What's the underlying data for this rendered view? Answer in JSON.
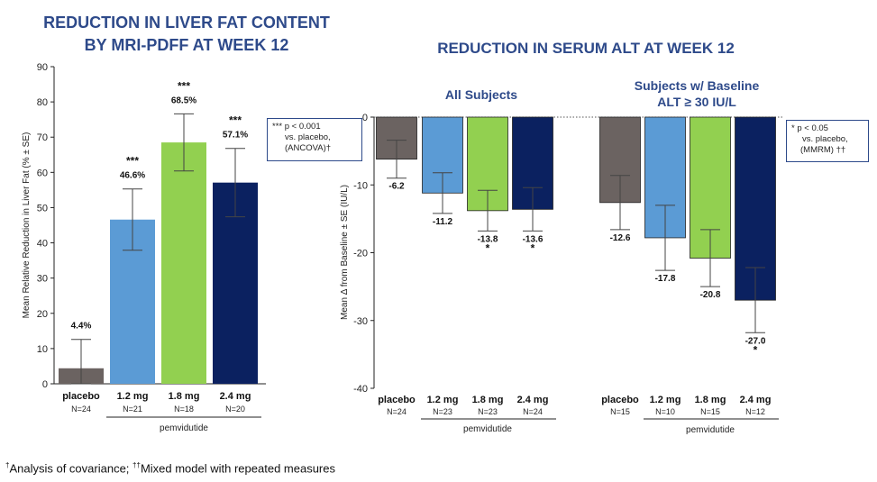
{
  "chart_data": [
    {
      "type": "bar",
      "title": [
        "REDUCTION IN LIVER FAT CONTENT",
        "BY MRI-PDFF AT WEEK 12"
      ],
      "ylabel": "Mean Relative Reduction in Liver Fat (% ± SE)",
      "ylim": [
        0,
        90
      ],
      "yticks": [
        0,
        10,
        20,
        30,
        40,
        50,
        60,
        70,
        80,
        90
      ],
      "categories": [
        "placebo",
        "1.2 mg",
        "1.8 mg",
        "2.4 mg"
      ],
      "n_labels": [
        "N=24",
        "N=21",
        "N=18",
        "N=20"
      ],
      "values": [
        4.4,
        46.6,
        68.5,
        57.1
      ],
      "errors": [
        8.2,
        8.7,
        8.1,
        9.7
      ],
      "value_labels": [
        "4.4%",
        "46.6%",
        "68.5%",
        "57.1%"
      ],
      "significance": [
        "",
        "***",
        "***",
        "***"
      ],
      "group_label": "pemvidutide",
      "legend": [
        "*** p  < 0.001",
        "vs. placebo,",
        "(ANCOVA)†"
      ],
      "colors": [
        "#6b6361",
        "#5b9bd5",
        "#92d050",
        "#0b2160"
      ]
    },
    {
      "type": "bar",
      "title": "REDUCTION IN SERUM ALT AT WEEK 12",
      "ylabel": "Mean Δ from Baseline ± SE (IU/L)",
      "ylim": [
        -40,
        0
      ],
      "yticks": [
        0,
        -10,
        -20,
        -30,
        -40
      ],
      "groups": [
        {
          "name": "All Subjects",
          "categories": [
            "placebo",
            "1.2 mg",
            "1.8 mg",
            "2.4 mg"
          ],
          "n_labels": [
            "N=24",
            "N=23",
            "N=23",
            "N=24"
          ],
          "values": [
            -6.2,
            -11.2,
            -13.8,
            -13.6
          ],
          "errors": [
            2.8,
            3.0,
            3.0,
            3.2
          ],
          "value_labels": [
            "-6.2",
            "-11.2",
            "-13.8",
            "-13.6"
          ],
          "significance": [
            "",
            "",
            "*",
            "*"
          ]
        },
        {
          "name": "Subjects w/ Baseline ALT ≥ 30 IU/L",
          "name_lines": [
            "Subjects w/ Baseline",
            "ALT ≥ 30 IU/L"
          ],
          "categories": [
            "placebo",
            "1.2 mg",
            "1.8 mg",
            "2.4 mg"
          ],
          "n_labels": [
            "N=15",
            "N=10",
            "N=15",
            "N=12"
          ],
          "values": [
            -12.6,
            -17.8,
            -20.8,
            -27.0
          ],
          "errors": [
            4.0,
            4.8,
            4.2,
            4.8
          ],
          "value_labels": [
            "-12.6",
            "-17.8",
            "-20.8",
            "-27.0"
          ],
          "significance": [
            "",
            "",
            "",
            "*"
          ]
        }
      ],
      "group_label": "pemvidutide",
      "legend": [
        "* p  < 0.05",
        "vs. placebo,",
        "(MMRM) ††"
      ],
      "colors": [
        "#6b6361",
        "#5b9bd5",
        "#92d050",
        "#0b2160"
      ]
    }
  ],
  "footnote": {
    "dagger": "†",
    "text1": "Analysis of covariance; ",
    "ddagger": "††",
    "text2": "Mixed model with repeated measures"
  }
}
